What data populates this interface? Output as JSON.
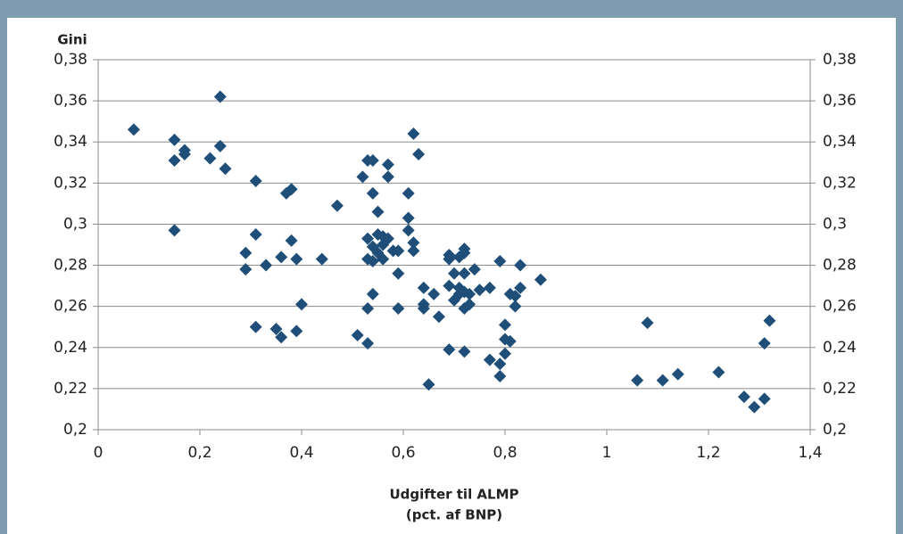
{
  "chart_data": {
    "type": "scatter",
    "y_axis_label": "Gini",
    "x_axis_label": [
      "Udgifter til ALMP",
      "(pct. af BNP)"
    ],
    "color": "#1f4e79",
    "grid": true,
    "xlim": [
      0,
      1.4
    ],
    "xticks": [
      0,
      {
        "value": 0.2,
        "label": "0,2"
      },
      {
        "value": 0.4,
        "label": "0,4"
      },
      {
        "value": 0.6,
        "label": "0,6"
      },
      {
        "value": 0.8,
        "label": "0,8"
      },
      1,
      {
        "value": 1.2,
        "label": "1,2"
      },
      {
        "value": 1.4,
        "label": "1,4"
      }
    ],
    "ylim": [
      0.2,
      0.38
    ],
    "yticks": [
      {
        "value": 0.2,
        "label": "0,2"
      },
      {
        "value": 0.22,
        "label": "0,22"
      },
      {
        "value": 0.24,
        "label": "0,24"
      },
      {
        "value": 0.26,
        "label": "0,26"
      },
      {
        "value": 0.28,
        "label": "0,28"
      },
      {
        "value": 0.3,
        "label": "0,3"
      },
      {
        "value": 0.32,
        "label": "0,32"
      },
      {
        "value": 0.34,
        "label": "0,34"
      },
      {
        "value": 0.36,
        "label": "0,36"
      },
      {
        "value": 0.38,
        "label": "0,38"
      }
    ],
    "x": [
      0.07,
      0.15,
      0.15,
      0.17,
      0.17,
      0.22,
      0.24,
      0.24,
      0.25,
      0.15,
      0.31,
      0.37,
      0.38,
      0.31,
      0.29,
      0.29,
      0.33,
      0.36,
      0.38,
      0.39,
      0.44,
      0.4,
      0.31,
      0.35,
      0.36,
      0.39,
      0.47,
      0.52,
      0.53,
      0.54,
      0.57,
      0.57,
      0.54,
      0.55,
      0.62,
      0.63,
      0.61,
      0.61,
      0.61,
      0.62,
      0.62,
      0.53,
      0.55,
      0.56,
      0.57,
      0.56,
      0.54,
      0.55,
      0.53,
      0.54,
      0.56,
      0.58,
      0.59,
      0.59,
      0.54,
      0.53,
      0.59,
      0.51,
      0.53,
      0.64,
      0.64,
      0.64,
      0.66,
      0.67,
      0.65,
      0.69,
      0.69,
      0.7,
      0.71,
      0.72,
      0.72,
      0.69,
      0.71,
      0.7,
      0.72,
      0.73,
      0.72,
      0.74,
      0.72,
      0.73,
      0.71,
      0.75,
      0.77,
      0.69,
      0.72,
      0.79,
      0.83,
      0.87,
      0.83,
      0.82,
      0.81,
      0.82,
      0.8,
      0.8,
      0.81,
      0.8,
      0.77,
      0.79,
      0.79,
      1.06,
      1.08,
      1.11,
      1.14,
      1.22,
      1.27,
      1.29,
      1.31,
      1.31,
      1.32
    ],
    "values": [
      0.346,
      0.341,
      0.331,
      0.336,
      0.334,
      0.332,
      0.362,
      0.338,
      0.327,
      0.297,
      0.321,
      0.315,
      0.317,
      0.295,
      0.286,
      0.278,
      0.28,
      0.284,
      0.292,
      0.283,
      0.283,
      0.261,
      0.25,
      0.249,
      0.245,
      0.248,
      0.309,
      0.323,
      0.331,
      0.331,
      0.329,
      0.323,
      0.315,
      0.306,
      0.344,
      0.334,
      0.315,
      0.303,
      0.297,
      0.291,
      0.287,
      0.293,
      0.295,
      0.294,
      0.293,
      0.29,
      0.289,
      0.286,
      0.283,
      0.282,
      0.283,
      0.287,
      0.287,
      0.276,
      0.266,
      0.259,
      0.259,
      0.246,
      0.242,
      0.269,
      0.261,
      0.259,
      0.266,
      0.255,
      0.222,
      0.285,
      0.283,
      0.276,
      0.284,
      0.286,
      0.288,
      0.27,
      0.269,
      0.263,
      0.267,
      0.266,
      0.276,
      0.278,
      0.259,
      0.261,
      0.266,
      0.268,
      0.269,
      0.239,
      0.238,
      0.282,
      0.28,
      0.273,
      0.269,
      0.265,
      0.266,
      0.26,
      0.251,
      0.244,
      0.243,
      0.237,
      0.234,
      0.232,
      0.226,
      0.224,
      0.252,
      0.224,
      0.227,
      0.228,
      0.216,
      0.211,
      0.215,
      0.242,
      0.253
    ]
  }
}
